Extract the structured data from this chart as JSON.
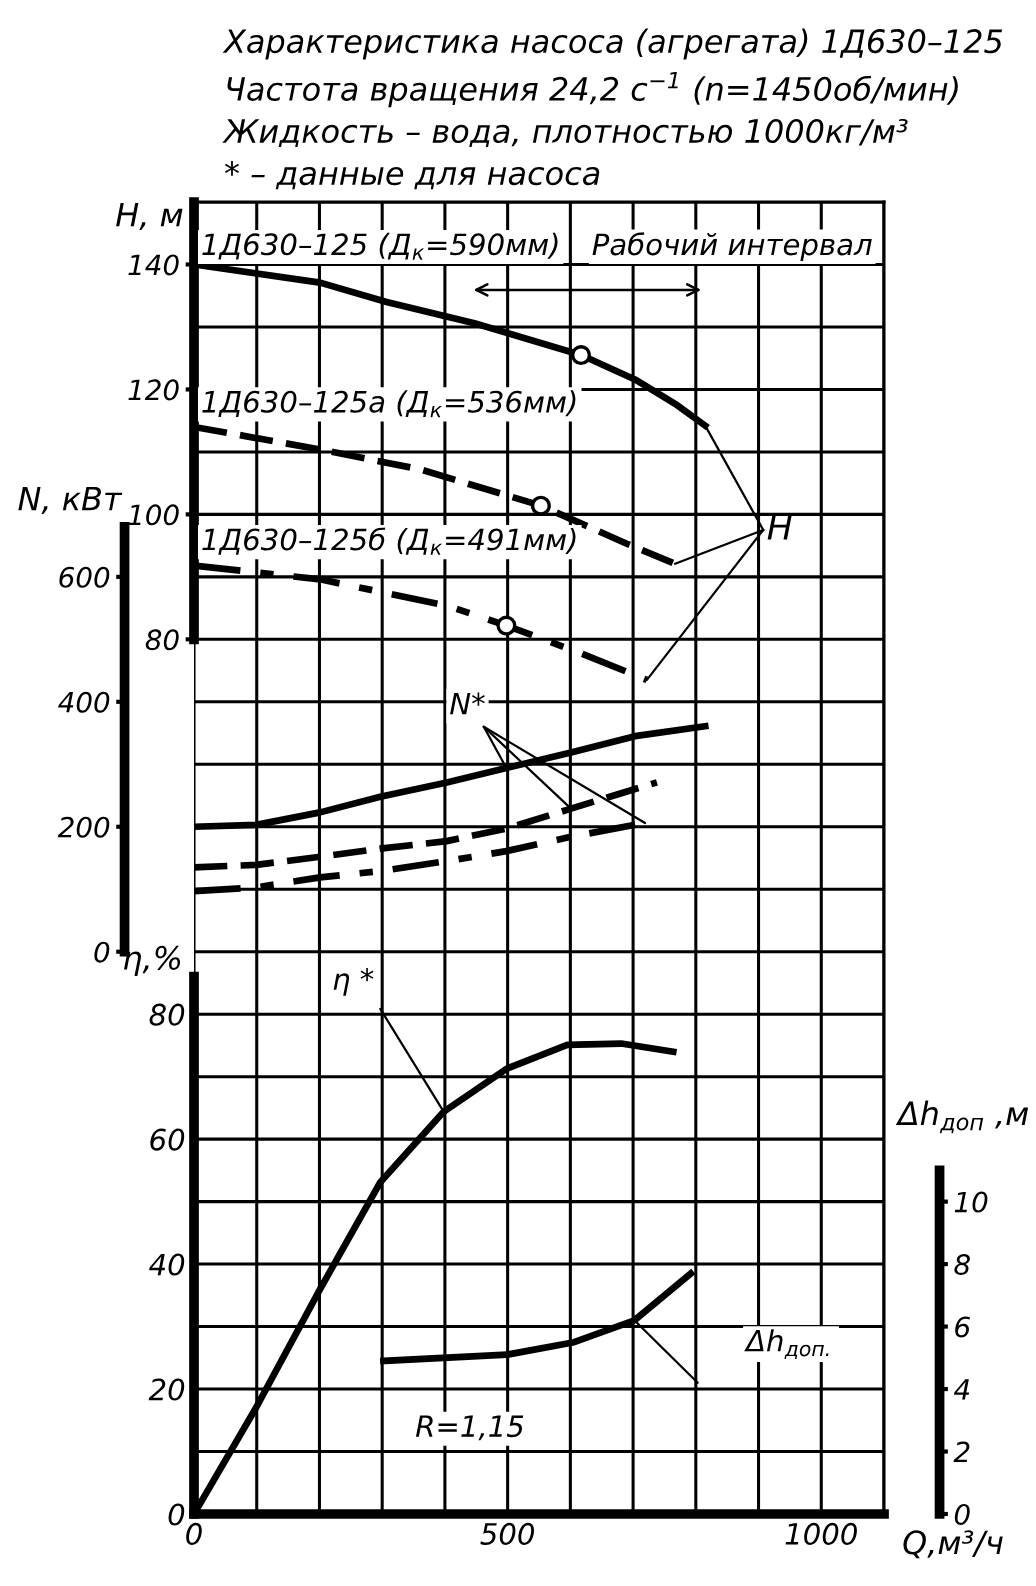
{
  "chart_data": [
    {
      "type": "line",
      "title": "Характеристика насоса (агрегата) 1Д630–125",
      "subtitle": "Частота вращения 24,2 с$^{−1}$ (n=1450об/мин)\nЖидкость – вода, плотностью 1000кг/м³",
      "xlabel": "Q,м³/ч",
      "ylabel": "η,%",
      "y2label": "Δh$_{доп}$ ,м",
      "y3label": "H, м",
      "xlim": [
        0,
        1100
      ],
      "xticks": [
        0,
        {
          "value": 100,
          "label": null
        },
        {
          "value": 200,
          "label": null
        },
        {
          "value": 300,
          "label": null
        },
        {
          "value": 400,
          "label": null
        },
        500,
        {
          "value": 600,
          "label": null
        },
        {
          "value": 700,
          "label": null
        },
        {
          "value": 800,
          "label": null
        },
        {
          "value": 900,
          "label": null
        },
        1000,
        {
          "value": 1100,
          "label": null
        }
      ],
      "ylim": [
        0,
        210
      ],
      "yticks": [
        0,
        {
          "value": 10,
          "label": null
        },
        20,
        {
          "value": 30,
          "label": null
        },
        40,
        {
          "value": 50,
          "label": null
        },
        60,
        {
          "value": 70,
          "label": null
        },
        80,
        {
          "value": 90,
          "label": null
        },
        {
          "value": 100,
          "label": null
        },
        {
          "value": 110,
          "label": null
        },
        {
          "value": 120,
          "label": null
        },
        {
          "value": 130,
          "label": null
        },
        {
          "value": 140,
          "label": null
        },
        {
          "value": 150,
          "label": null
        },
        {
          "value": 160,
          "label": null
        },
        {
          "value": 170,
          "label": null
        },
        {
          "value": 180,
          "label": null
        },
        {
          "value": 190,
          "label": null
        },
        {
          "value": 200,
          "label": null
        },
        {
          "value": 210,
          "label": null
        }
      ],
      "y2lim": [
        0,
        42
      ],
      "y2ticks": [
        0,
        2,
        4,
        6,
        8,
        10
      ],
      "y3lim": [
        -60,
        150
      ],
      "y3ticks": [
        80,
        100,
        120,
        140
      ],
      "grid": true,
      "series": [
        {
          "name": "η *",
          "type": "line",
          "color": "#000000",
          "line_style": "solid",
          "x": [
            0,
            100,
            201,
            297,
            398,
            499,
            595,
            681,
            764
          ],
          "values": [
            0,
            17.2,
            36,
            53.1,
            64.4,
            71.3,
            75.1,
            75.3,
            74
          ]
        },
        {
          "name": "Δh$_{доп.}$",
          "type": "line",
          "axis": "y2",
          "color": "#000000",
          "line_style": "solid",
          "x": [
            302,
            499,
            606,
            702,
            792
          ],
          "values": [
            4.9,
            5.1,
            5.5,
            6.2,
            7.7
          ]
        },
        {
          "name": "1Д630–125 (Д$_{к}$=590мм)",
          "type": "line",
          "axis": "y3",
          "color": "#000000",
          "line_style": "solid",
          "x": [
            0,
            201,
            307,
            447,
            617,
            703,
            767,
            815
          ],
          "values": [
            140,
            137.1,
            134,
            130.6,
            125.5,
            121.6,
            117.7,
            114.2
          ]
        },
        {
          "name": "1Д630–125а (Д$_{к}$=536мм)",
          "type": "line",
          "axis": "y3",
          "color": "#000000",
          "line_style": "dashed",
          "x": [
            0,
            200,
            361,
            553,
            690,
            767
          ],
          "values": [
            114,
            110.4,
            107.2,
            101.4,
            95.3,
            92.1
          ]
        },
        {
          "name": "1Д630–125б (Д$_{к}$=491мм)",
          "type": "line",
          "axis": "y3",
          "color": "#000000",
          "line_style": "dashdot",
          "x": [
            0,
            201,
            403,
            498,
            626,
            722
          ],
          "values": [
            91.8,
            89.6,
            85.4,
            82.2,
            77.4,
            73.5
          ]
        },
        {
          "type": "scatter",
          "axis": "y3",
          "color": "#000000",
          "marker": "circle",
          "x": [
            617,
            553,
            498
          ],
          "values": [
            125.5,
            101.4,
            82.2
          ]
        }
      ],
      "annotations": [
        "* – данные для насоса",
        "Рабочий интервал",
        {
          "text": "H",
          "x": 767,
          "y": 152.1
        },
        "R=1,15"
      ]
    },
    {
      "type": "line",
      "ylabel": "N, кВт",
      "xlim": [
        0,
        1100
      ],
      "ylim": [
        -900,
        1200
      ],
      "yticks": [
        0,
        200,
        400,
        600
      ],
      "tick_labels": "y",
      "series": [
        {
          "name": "N*",
          "color": "#000000",
          "line_style": "solid",
          "x": [
            0,
            99,
            201,
            297,
            403,
            498,
            601,
            703,
            815
          ],
          "values": [
            200,
            203,
            223,
            248,
            271,
            294,
            319,
            345,
            361
          ]
        },
        {
          "color": "#000000",
          "line_style": "dashed",
          "x": [
            0,
            99,
            201,
            297,
            403,
            498,
            601,
            738
          ],
          "values": [
            135,
            139,
            152,
            165,
            177,
            197,
            229,
            271
          ]
        },
        {
          "color": "#000000",
          "line_style": "dashdot",
          "x": [
            0,
            99,
            201,
            297,
            403,
            498,
            601,
            719
          ],
          "values": [
            97,
            103,
            119,
            129,
            145,
            161,
            184,
            206
          ]
        }
      ]
    }
  ]
}
